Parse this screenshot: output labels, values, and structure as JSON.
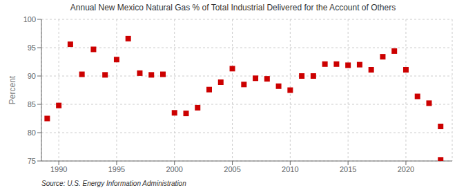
{
  "chart_data": {
    "type": "scatter",
    "title": "Annual New Mexico Natural Gas % of Total Industrial Delivered for the Account of Others",
    "y_label": "Percent",
    "annotation": "Source: U.S. Energy Information Administration",
    "x": [
      1989,
      1990,
      1991,
      1992,
      1993,
      1994,
      1995,
      1996,
      1997,
      1998,
      1999,
      2000,
      2001,
      2002,
      2003,
      2004,
      2005,
      2006,
      2007,
      2008,
      2009,
      2010,
      2011,
      2012,
      2013,
      2014,
      2015,
      2016,
      2017,
      2018,
      2019,
      2020,
      2021,
      2022,
      2023,
      2023
    ],
    "values": [
      82.5,
      84.8,
      95.6,
      90.3,
      94.7,
      90.2,
      92.9,
      96.6,
      90.5,
      90.2,
      90.3,
      83.5,
      83.4,
      84.4,
      87.6,
      88.9,
      91.3,
      88.5,
      89.6,
      89.5,
      88.2,
      87.5,
      90.0,
      90.0,
      92.1,
      92.1,
      91.9,
      92.0,
      91.1,
      93.4,
      94.4,
      91.1,
      86.4,
      85.2,
      81.1,
      75.2
    ],
    "color": "#cc0000",
    "marker": "square",
    "xlim": [
      1988.5,
      2024.0
    ],
    "ylim": [
      75,
      100
    ],
    "xticks": [
      1990,
      1995,
      2000,
      2005,
      2010,
      2015,
      2020
    ],
    "yticks": [
      75,
      80,
      85,
      90,
      95,
      100
    ],
    "grid": true
  }
}
